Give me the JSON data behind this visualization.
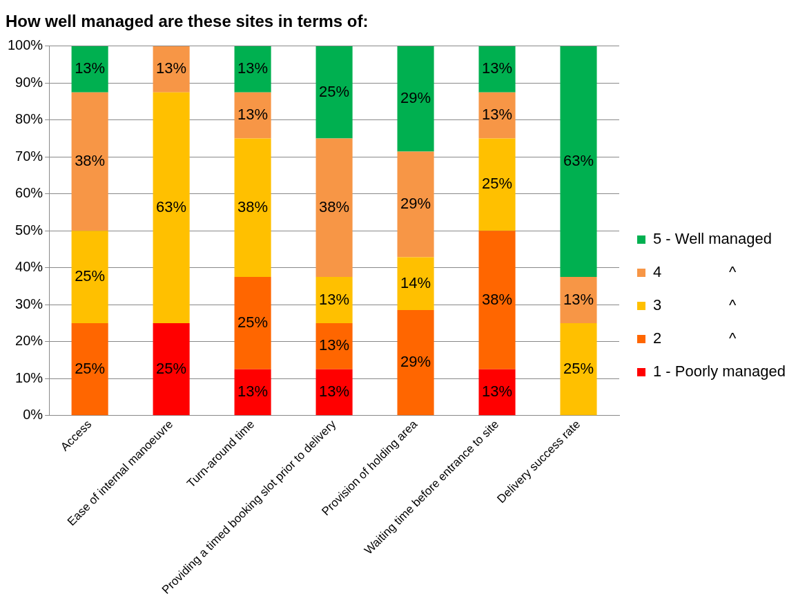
{
  "chart_data": {
    "type": "bar",
    "stacked": true,
    "title": "How well managed are these sites in terms of:",
    "categories": [
      "Access",
      "Ease of internal manoeuvre",
      "Turn-around time",
      "Providing a timed booking slot prior to delivery",
      "Provision of holding area",
      "Waiting time before entrance to site",
      "Delivery success rate"
    ],
    "series": [
      {
        "name": "1 - Poorly managed",
        "color": "#ff0000",
        "values": [
          null,
          25,
          12.5,
          12.5,
          null,
          12.5,
          null
        ],
        "value_labels": [
          null,
          "25%",
          "13%",
          "13%",
          null,
          "13%",
          null
        ]
      },
      {
        "name": "2                ^",
        "color": "#ff6600",
        "values": [
          25,
          null,
          25,
          12.5,
          28.57,
          37.5,
          null
        ],
        "value_labels": [
          "25%",
          null,
          "25%",
          "13%",
          "29%",
          "38%",
          null
        ]
      },
      {
        "name": "3                ^",
        "color": "#ffc000",
        "values": [
          25,
          62.5,
          37.5,
          12.5,
          14.29,
          25,
          25
        ],
        "value_labels": [
          "25%",
          "63%",
          "38%",
          "13%",
          "14%",
          "25%",
          "25%"
        ]
      },
      {
        "name": "4                ^",
        "color": "#f79646",
        "values": [
          37.5,
          12.5,
          12.5,
          37.5,
          28.57,
          12.5,
          12.5
        ],
        "value_labels": [
          "38%",
          "13%",
          "13%",
          "38%",
          "29%",
          "13%",
          "13%"
        ]
      },
      {
        "name": "5 - Well managed",
        "color": "#00b050",
        "values": [
          12.5,
          null,
          12.5,
          25,
          28.57,
          12.5,
          62.5
        ],
        "value_labels": [
          "13%",
          null,
          "13%",
          "25%",
          "29%",
          "13%",
          "63%"
        ]
      }
    ],
    "ylim": [
      0,
      100
    ],
    "yticks": [
      {
        "value": 0,
        "label": "0%"
      },
      {
        "value": 10,
        "label": "10%"
      },
      {
        "value": 20,
        "label": "20%"
      },
      {
        "value": 30,
        "label": "30%"
      },
      {
        "value": 40,
        "label": "40%"
      },
      {
        "value": 50,
        "label": "50%"
      },
      {
        "value": 60,
        "label": "60%"
      },
      {
        "value": 70,
        "label": "70%"
      },
      {
        "value": 80,
        "label": "80%"
      },
      {
        "value": 90,
        "label": "90%"
      },
      {
        "value": 100,
        "label": "100%"
      }
    ],
    "grid": "y",
    "legend": "right"
  }
}
